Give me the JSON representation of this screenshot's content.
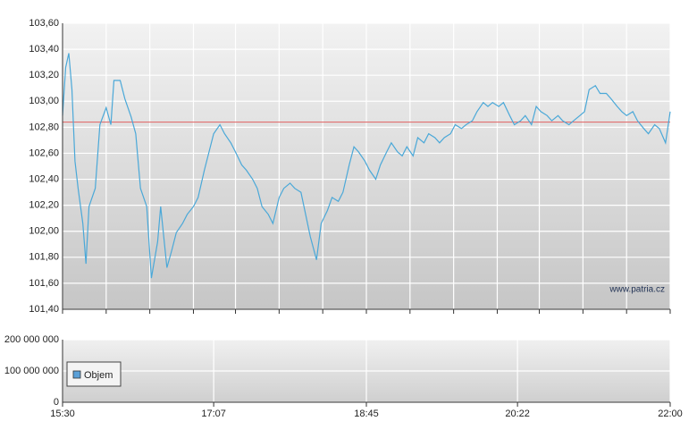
{
  "chart_data": [
    {
      "type": "line",
      "annotation": "www.patria.cz",
      "x": [
        "15:30",
        "15:32",
        "15:34",
        "15:36",
        "15:38",
        "15:40",
        "15:43",
        "15:45",
        "15:47",
        "15:51",
        "15:54",
        "15:58",
        "16:01",
        "16:03",
        "16:07",
        "16:10",
        "16:14",
        "16:17",
        "16:20",
        "16:24",
        "16:27",
        "16:31",
        "16:33",
        "16:37",
        "16:40",
        "16:43",
        "16:47",
        "16:50",
        "16:54",
        "16:57",
        "17:01",
        "17:04",
        "17:07",
        "17:11",
        "17:14",
        "17:18",
        "17:21",
        "17:25",
        "17:28",
        "17:32",
        "17:35",
        "17:38",
        "17:42",
        "17:45",
        "17:49",
        "17:52",
        "17:56",
        "17:59",
        "18:03",
        "18:06",
        "18:09",
        "18:13",
        "18:16",
        "18:20",
        "18:23",
        "18:27",
        "18:30",
        "18:34",
        "18:37",
        "18:40",
        "18:44",
        "18:47",
        "18:51",
        "18:54",
        "18:58",
        "19:01",
        "19:05",
        "19:08",
        "19:11",
        "19:15",
        "19:18",
        "19:22",
        "19:25",
        "19:29",
        "19:32",
        "19:35",
        "19:39",
        "19:42",
        "19:46",
        "19:49",
        "19:53",
        "19:56",
        "20:00",
        "20:03",
        "20:06",
        "20:10",
        "20:13",
        "20:17",
        "20:20",
        "20:24",
        "20:27",
        "20:31",
        "20:34",
        "20:37",
        "20:41",
        "20:44",
        "20:48",
        "20:51",
        "20:55",
        "20:58",
        "21:02",
        "21:05",
        "21:08",
        "21:12",
        "21:15",
        "21:19",
        "21:22",
        "21:26",
        "21:29",
        "21:32",
        "21:36",
        "21:39",
        "21:43",
        "21:46",
        "21:50",
        "21:53",
        "21:57",
        "22:00"
      ],
      "series": [
        {
          "color": "#4aa8d8",
          "values": [
            102.89,
            103.26,
            103.37,
            103.09,
            102.54,
            102.33,
            102.06,
            101.75,
            102.19,
            102.33,
            102.82,
            102.95,
            102.82,
            103.16,
            103.16,
            103.02,
            102.88,
            102.75,
            102.33,
            102.19,
            101.64,
            101.92,
            102.19,
            101.72,
            101.85,
            101.99,
            102.06,
            102.13,
            102.19,
            102.26,
            102.47,
            102.61,
            102.75,
            102.82,
            102.75,
            102.68,
            102.61,
            102.51,
            102.47,
            102.4,
            102.33,
            102.19,
            102.13,
            102.06,
            102.26,
            102.33,
            102.37,
            102.33,
            102.3,
            102.13,
            101.96,
            101.78,
            102.06,
            102.16,
            102.26,
            102.23,
            102.3,
            102.51,
            102.65,
            102.61,
            102.54,
            102.47,
            102.4,
            102.51,
            102.61,
            102.68,
            102.61,
            102.58,
            102.65,
            102.58,
            102.72,
            102.68,
            102.75,
            102.72,
            102.68,
            102.72,
            102.75,
            102.82,
            102.79,
            102.82,
            102.85,
            102.92,
            102.99,
            102.96,
            102.99,
            102.96,
            102.99,
            102.89,
            102.82,
            102.85,
            102.89,
            102.82,
            102.96,
            102.92,
            102.89,
            102.85,
            102.89,
            102.85,
            102.82,
            102.85,
            102.89,
            102.92,
            103.09,
            103.12,
            103.06,
            103.06,
            103.02,
            102.96,
            102.92,
            102.89,
            102.92,
            102.85,
            102.79,
            102.75,
            102.82,
            102.79,
            102.68,
            102.92
          ]
        }
      ],
      "reference_line": {
        "value": 102.84,
        "color": "#e07070"
      },
      "xlim": [
        "15:30",
        "22:00"
      ],
      "xticks": [
        "15:30",
        "15:58",
        "16:26",
        "16:54",
        "17:21",
        "17:49",
        "18:17",
        "18:45",
        "19:13",
        "19:41",
        "20:09",
        "20:36",
        "21:04",
        "21:32",
        "22:00"
      ],
      "ylim": [
        101.4,
        103.6
      ],
      "yticks": [
        {
          "value": 101.4,
          "label": "101,40"
        },
        {
          "value": 101.6,
          "label": "101,60"
        },
        {
          "value": 101.8,
          "label": "101,80"
        },
        {
          "value": 102.0,
          "label": "102,00"
        },
        {
          "value": 102.2,
          "label": "102,20"
        },
        {
          "value": 102.4,
          "label": "102,40"
        },
        {
          "value": 102.6,
          "label": "102,60"
        },
        {
          "value": 102.8,
          "label": "102,80"
        },
        {
          "value": 103.0,
          "label": "103,00"
        },
        {
          "value": 103.2,
          "label": "103,20"
        },
        {
          "value": 103.4,
          "label": "103,40"
        },
        {
          "value": 103.6,
          "label": "103,60"
        }
      ],
      "grid": true
    },
    {
      "type": "bar",
      "series": [
        {
          "name": "Objem",
          "color": "#5aa0d8"
        }
      ],
      "legend": "bottom-left",
      "xlim": [
        "15:30",
        "22:00"
      ],
      "xticks": [
        "15:30",
        "17:07",
        "18:45",
        "20:22",
        "22:00"
      ],
      "ylim": [
        0,
        200000000
      ],
      "yticks": [
        {
          "value": 0,
          "label": "0"
        },
        {
          "value": 100000000,
          "label": "100 000 000"
        },
        {
          "value": 200000000,
          "label": "200 000 000"
        }
      ],
      "grid": true
    }
  ]
}
